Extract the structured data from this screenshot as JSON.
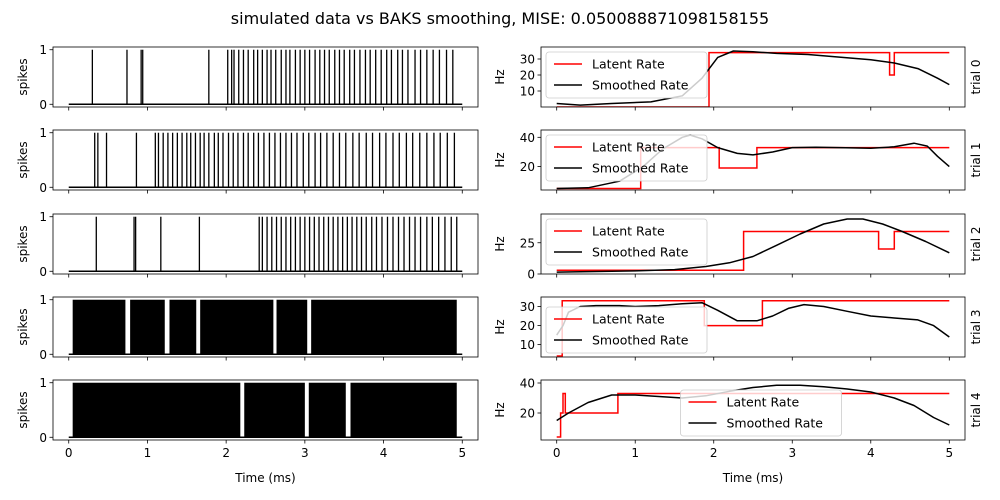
{
  "chart_data": {
    "title": "simulated data vs BAKS smoothing, MISE: 0.050088871098158155",
    "xlabel": "Time (ms)",
    "spike_ylabel": "spikes",
    "rate_ylabel": "Hz",
    "xlim": [
      -0.2,
      5.2
    ],
    "xticks": [
      0,
      1,
      2,
      3,
      4,
      5
    ],
    "colors": {
      "latent": "#ff0000",
      "smoothed": "#000000",
      "spikes": "#000000"
    },
    "legend_labels": [
      "Latent Rate",
      "Smoothed Rate"
    ],
    "trials": [
      {
        "label": "trial 0",
        "spike_type": "raster",
        "spikes": [
          0.3,
          0.74,
          0.92,
          0.94,
          1.78,
          2.02,
          2.07,
          2.1,
          2.16,
          2.22,
          2.28,
          2.35,
          2.4,
          2.46,
          2.52,
          2.57,
          2.63,
          2.7,
          2.76,
          2.81,
          2.88,
          2.94,
          3.0,
          3.06,
          3.13,
          3.19,
          3.25,
          3.31,
          3.38,
          3.44,
          3.5,
          3.57,
          3.63,
          3.7,
          3.77,
          3.83,
          3.9,
          3.97,
          4.04,
          4.1,
          4.18,
          4.24,
          4.31,
          4.4,
          4.47,
          4.55,
          4.63,
          4.71,
          4.8,
          4.88
        ],
        "ylim": [
          0,
          37.5
        ],
        "yticks": [
          10,
          20,
          30
        ],
        "legend_pos": "upper-left",
        "latent": [
          [
            0,
            0
          ],
          [
            1.94,
            0
          ],
          [
            1.94,
            34
          ],
          [
            4.24,
            34
          ],
          [
            4.24,
            20
          ],
          [
            4.3,
            20
          ],
          [
            4.3,
            34
          ],
          [
            5,
            34
          ]
        ],
        "smoothed": [
          [
            0,
            2.2
          ],
          [
            0.3,
            1.2
          ],
          [
            0.7,
            2.2
          ],
          [
            1.2,
            3.2
          ],
          [
            1.6,
            7
          ],
          [
            1.85,
            18
          ],
          [
            2.05,
            31
          ],
          [
            2.25,
            35
          ],
          [
            2.5,
            34.5
          ],
          [
            2.8,
            33.5
          ],
          [
            3.2,
            32.8
          ],
          [
            3.6,
            31.2
          ],
          [
            4.0,
            29.5
          ],
          [
            4.3,
            27.5
          ],
          [
            4.6,
            24
          ],
          [
            4.85,
            18
          ],
          [
            5.0,
            14
          ]
        ]
      },
      {
        "label": "trial 1",
        "spike_type": "raster",
        "spikes": [
          0.33,
          0.37,
          0.48,
          0.86,
          1.1,
          1.14,
          1.2,
          1.26,
          1.32,
          1.38,
          1.44,
          1.5,
          1.55,
          1.61,
          1.67,
          1.72,
          1.78,
          1.85,
          1.9,
          1.96,
          2.03,
          2.09,
          2.15,
          2.22,
          2.28,
          2.35,
          2.41,
          2.48,
          2.55,
          2.62,
          2.69,
          2.76,
          2.83,
          2.9,
          2.98,
          3.05,
          3.13,
          3.2,
          3.28,
          3.36,
          3.44,
          3.52,
          3.61,
          3.69,
          3.78,
          3.86,
          3.95,
          4.03,
          4.12,
          4.2,
          4.29,
          4.37,
          4.46,
          4.55,
          4.64,
          4.72,
          4.81,
          4.9
        ],
        "ylim": [
          4,
          45
        ],
        "yticks": [
          20,
          40
        ],
        "legend_pos": "upper-left",
        "latent": [
          [
            0,
            5
          ],
          [
            1.07,
            5
          ],
          [
            1.07,
            33
          ],
          [
            2.07,
            33
          ],
          [
            2.07,
            19
          ],
          [
            2.55,
            19
          ],
          [
            2.55,
            33
          ],
          [
            5,
            33
          ]
        ],
        "smoothed": [
          [
            0,
            5
          ],
          [
            0.4,
            5.5
          ],
          [
            0.8,
            10
          ],
          [
            1.1,
            20
          ],
          [
            1.35,
            32
          ],
          [
            1.6,
            40
          ],
          [
            1.7,
            41.5
          ],
          [
            1.85,
            39
          ],
          [
            2.05,
            33
          ],
          [
            2.3,
            29
          ],
          [
            2.5,
            28
          ],
          [
            2.75,
            30
          ],
          [
            3.0,
            33
          ],
          [
            3.3,
            33.2
          ],
          [
            3.6,
            33
          ],
          [
            4.0,
            32.5
          ],
          [
            4.3,
            33.5
          ],
          [
            4.55,
            36
          ],
          [
            4.72,
            34
          ],
          [
            4.85,
            27
          ],
          [
            5.0,
            20
          ]
        ]
      },
      {
        "label": "trial 2",
        "spike_type": "raster",
        "spikes": [
          0.35,
          0.83,
          0.85,
          1.17,
          1.66,
          2.42,
          2.46,
          2.52,
          2.58,
          2.64,
          2.7,
          2.76,
          2.82,
          2.88,
          2.94,
          3.0,
          3.06,
          3.12,
          3.18,
          3.24,
          3.3,
          3.36,
          3.42,
          3.48,
          3.54,
          3.6,
          3.66,
          3.72,
          3.78,
          3.85,
          3.91,
          3.98,
          4.05,
          4.12,
          4.19,
          4.26,
          4.33,
          4.4,
          4.47,
          4.55,
          4.62,
          4.7,
          4.78,
          4.86,
          4.93
        ],
        "ylim": [
          0,
          48
        ],
        "yticks": [
          0,
          25
        ],
        "legend_pos": "upper-left",
        "latent": [
          [
            0,
            3
          ],
          [
            2.38,
            3
          ],
          [
            2.38,
            34
          ],
          [
            4.1,
            34
          ],
          [
            4.1,
            20
          ],
          [
            4.3,
            20
          ],
          [
            4.3,
            34
          ],
          [
            5,
            34
          ]
        ],
        "smoothed": [
          [
            0,
            1.5
          ],
          [
            0.5,
            2
          ],
          [
            1.0,
            2.5
          ],
          [
            1.5,
            3.5
          ],
          [
            1.9,
            6
          ],
          [
            2.2,
            9
          ],
          [
            2.5,
            14
          ],
          [
            2.8,
            23
          ],
          [
            3.1,
            32
          ],
          [
            3.4,
            40
          ],
          [
            3.7,
            44
          ],
          [
            3.9,
            44
          ],
          [
            4.15,
            40
          ],
          [
            4.4,
            34
          ],
          [
            4.7,
            26
          ],
          [
            5.0,
            17
          ]
        ]
      },
      {
        "label": "trial 3",
        "spike_type": "block",
        "blocks": [
          [
            0.05,
            0.72
          ],
          [
            0.78,
            1.22
          ],
          [
            1.28,
            1.62
          ],
          [
            1.67,
            2.6
          ],
          [
            2.64,
            3.03
          ],
          [
            3.08,
            4.93
          ]
        ],
        "ylim": [
          3.5,
          35
        ],
        "yticks": [
          10,
          20,
          30
        ],
        "legend_pos": "lower-left",
        "latent": [
          [
            0,
            4
          ],
          [
            0.07,
            4
          ],
          [
            0.07,
            33
          ],
          [
            1.88,
            33
          ],
          [
            1.88,
            20
          ],
          [
            2.62,
            20
          ],
          [
            2.62,
            33
          ],
          [
            5,
            33
          ]
        ],
        "smoothed": [
          [
            0,
            15
          ],
          [
            0.08,
            20
          ],
          [
            0.15,
            27
          ],
          [
            0.3,
            30
          ],
          [
            0.5,
            30.5
          ],
          [
            0.8,
            30.5
          ],
          [
            1.0,
            30
          ],
          [
            1.3,
            30.5
          ],
          [
            1.6,
            31.5
          ],
          [
            1.85,
            32
          ],
          [
            2.05,
            28
          ],
          [
            2.3,
            22.5
          ],
          [
            2.55,
            22.5
          ],
          [
            2.75,
            25
          ],
          [
            2.95,
            29
          ],
          [
            3.15,
            31
          ],
          [
            3.4,
            30
          ],
          [
            3.7,
            27.5
          ],
          [
            4.0,
            25
          ],
          [
            4.3,
            24
          ],
          [
            4.6,
            23
          ],
          [
            4.8,
            20
          ],
          [
            5.0,
            14
          ]
        ]
      },
      {
        "label": "trial 4",
        "spike_type": "block",
        "blocks": [
          [
            0.05,
            2.18
          ],
          [
            2.23,
            3.0
          ],
          [
            3.05,
            3.52
          ],
          [
            3.58,
            4.93
          ]
        ],
        "ylim": [
          2,
          42
        ],
        "yticks": [
          20,
          40
        ],
        "legend_pos": "lower-center",
        "latent": [
          [
            0,
            4
          ],
          [
            0.05,
            4
          ],
          [
            0.05,
            20
          ],
          [
            0.08,
            20
          ],
          [
            0.08,
            33
          ],
          [
            0.11,
            33
          ],
          [
            0.11,
            20
          ],
          [
            0.78,
            20
          ],
          [
            0.78,
            33
          ],
          [
            5,
            33
          ]
        ],
        "smoothed": [
          [
            0,
            15
          ],
          [
            0.15,
            20
          ],
          [
            0.4,
            27
          ],
          [
            0.7,
            32
          ],
          [
            1.0,
            32
          ],
          [
            1.3,
            31
          ],
          [
            1.6,
            30
          ],
          [
            1.9,
            31.5
          ],
          [
            2.2,
            34.5
          ],
          [
            2.5,
            37
          ],
          [
            2.8,
            38.5
          ],
          [
            3.1,
            38.5
          ],
          [
            3.4,
            37.5
          ],
          [
            3.7,
            36
          ],
          [
            4.0,
            34
          ],
          [
            4.3,
            30
          ],
          [
            4.55,
            25
          ],
          [
            4.8,
            17
          ],
          [
            5.0,
            12
          ]
        ]
      }
    ]
  }
}
